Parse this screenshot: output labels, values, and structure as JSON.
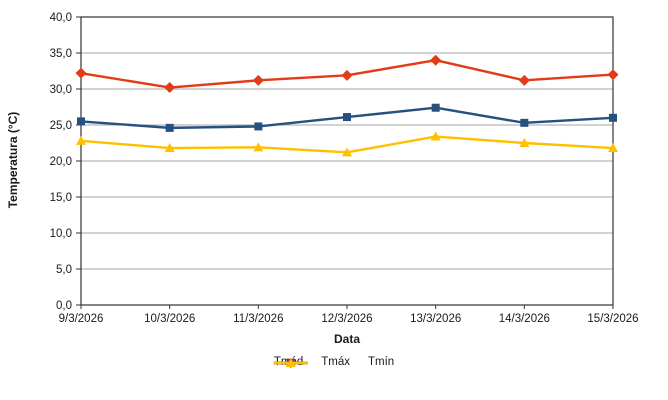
{
  "chart_data": {
    "type": "line",
    "title": "",
    "xlabel": "Data",
    "ylabel": "Temperatura (°C)",
    "categories": [
      "9/3/2026",
      "10/3/2026",
      "11/3/2026",
      "12/3/2026",
      "13/3/2026",
      "14/3/2026",
      "15/3/2026"
    ],
    "series": [
      {
        "name": "Tméd",
        "color": "#255080",
        "marker": "square",
        "values": [
          25.5,
          24.6,
          24.8,
          26.1,
          27.4,
          25.3,
          26.0
        ]
      },
      {
        "name": "Tmáx",
        "color": "#E23B17",
        "marker": "diamond",
        "values": [
          32.2,
          30.2,
          31.2,
          31.9,
          34.0,
          31.2,
          32.0
        ]
      },
      {
        "name": "Tmín",
        "color": "#FFC000",
        "marker": "triangle",
        "values": [
          22.8,
          21.8,
          21.9,
          21.2,
          23.4,
          22.5,
          21.8
        ]
      }
    ],
    "ylim": [
      0,
      40
    ],
    "ytick_step": 5,
    "ytick_labels": [
      "0,0",
      "5,0",
      "10,0",
      "15,0",
      "20,0",
      "25,0",
      "30,0",
      "35,0",
      "40,0"
    ],
    "grid": true,
    "legend_position": "bottom"
  },
  "style": {
    "background": "#FFFFFF",
    "gridline_color": "#A6A6A6",
    "axis_color": "#333333",
    "text_color": "#1a1a1a"
  }
}
